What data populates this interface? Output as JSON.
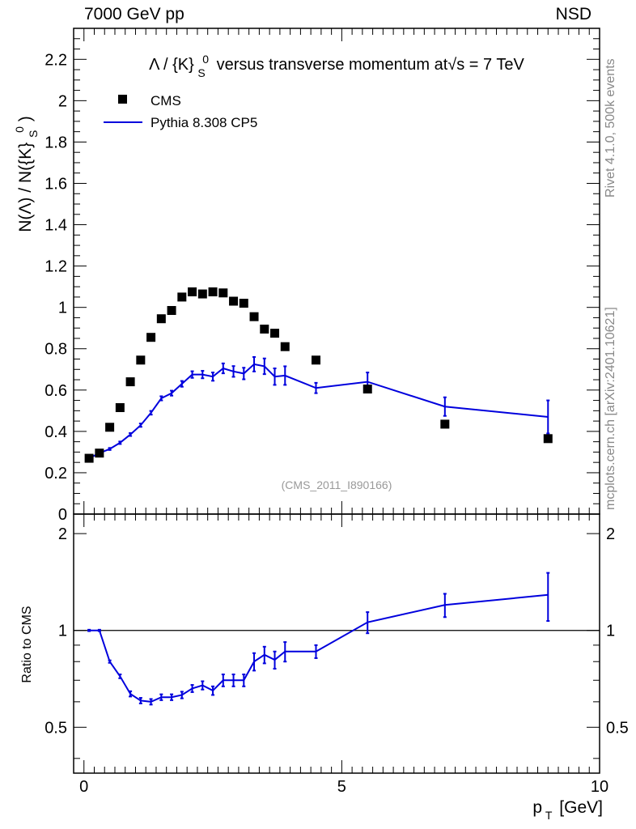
{
  "header": {
    "energy_label": "7000 GeV pp",
    "process_label": "NSD"
  },
  "side_labels": {
    "rivet": "Rivet 4.1.0,  500k events",
    "mcplots": "mcplots.cern.ch [arXiv:2401.10621]"
  },
  "chart_data": [
    {
      "type": "scatter",
      "panel": "main",
      "title": "Λ / {K}_S^0 versus transverse momentum at √s = 7 TeV",
      "ylabel": "N(Λ)  /  N({K}_S^0)",
      "xlim": [
        -0.2,
        10
      ],
      "ylim": [
        0,
        2.35
      ],
      "yticks": [
        "0",
        "0.2",
        "0.4",
        "0.6",
        "0.8",
        "1",
        "1.2",
        "1.4",
        "1.6",
        "1.8",
        "2",
        "2.2"
      ],
      "analysis_tag": "(CMS_2011_I890166)",
      "legend": {
        "position": "top-left",
        "entries": [
          "CMS",
          "Pythia 8.308 CP5"
        ]
      },
      "series": [
        {
          "name": "CMS",
          "style": "markers",
          "color": "#000000",
          "x": [
            0.1,
            0.3,
            0.5,
            0.7,
            0.9,
            1.1,
            1.3,
            1.5,
            1.7,
            1.9,
            2.1,
            2.3,
            2.5,
            2.7,
            2.9,
            3.1,
            3.3,
            3.5,
            3.7,
            3.9,
            4.5,
            5.5,
            7.0,
            9.0
          ],
          "y": [
            0.27,
            0.295,
            0.42,
            0.515,
            0.64,
            0.745,
            0.855,
            0.945,
            0.985,
            1.05,
            1.075,
            1.065,
            1.075,
            1.07,
            1.03,
            1.02,
            0.955,
            0.895,
            0.875,
            0.81,
            0.745,
            0.605,
            0.435,
            0.365
          ]
        },
        {
          "name": "Pythia 8.308 CP5",
          "style": "line",
          "color": "#0000dd",
          "x": [
            0.1,
            0.3,
            0.5,
            0.7,
            0.9,
            1.1,
            1.3,
            1.5,
            1.7,
            1.9,
            2.1,
            2.3,
            2.5,
            2.7,
            2.9,
            3.1,
            3.3,
            3.5,
            3.7,
            3.9,
            4.5,
            5.5,
            7.0,
            9.0
          ],
          "y": [
            0.27,
            0.295,
            0.315,
            0.345,
            0.385,
            0.43,
            0.49,
            0.56,
            0.585,
            0.63,
            0.675,
            0.675,
            0.665,
            0.705,
            0.69,
            0.68,
            0.725,
            0.715,
            0.665,
            0.67,
            0.61,
            0.64,
            0.52,
            0.47
          ],
          "err": [
            0.005,
            0.005,
            0.005,
            0.006,
            0.007,
            0.008,
            0.009,
            0.01,
            0.012,
            0.014,
            0.016,
            0.018,
            0.02,
            0.024,
            0.026,
            0.028,
            0.035,
            0.038,
            0.04,
            0.045,
            0.025,
            0.045,
            0.045,
            0.08
          ]
        }
      ]
    },
    {
      "type": "line",
      "panel": "ratio",
      "ylabel": "Ratio to CMS",
      "xlabel": "p_T [GeV]",
      "xlim": [
        -0.2,
        10
      ],
      "ylim": [
        0.36,
        2.3
      ],
      "ytick_labels": [
        "0.5",
        "1",
        "2"
      ],
      "xtick_labels": [
        "0",
        "5",
        "10"
      ],
      "reference": 1,
      "series": [
        {
          "name": "Pythia 8.308 CP5 / CMS",
          "color": "#0000dd",
          "x": [
            0.1,
            0.3,
            0.5,
            0.7,
            0.9,
            1.1,
            1.3,
            1.5,
            1.7,
            1.9,
            2.1,
            2.3,
            2.5,
            2.7,
            2.9,
            3.1,
            3.3,
            3.5,
            3.7,
            3.9,
            4.5,
            5.5,
            7.0,
            9.0
          ],
          "y": [
            1.0,
            1.0,
            0.8,
            0.72,
            0.635,
            0.605,
            0.6,
            0.62,
            0.62,
            0.63,
            0.66,
            0.675,
            0.65,
            0.7,
            0.7,
            0.7,
            0.8,
            0.84,
            0.81,
            0.86,
            0.86,
            1.06,
            1.2,
            1.29
          ],
          "err": [
            0.005,
            0.005,
            0.007,
            0.01,
            0.012,
            0.012,
            0.012,
            0.013,
            0.013,
            0.015,
            0.017,
            0.02,
            0.02,
            0.03,
            0.03,
            0.03,
            0.05,
            0.05,
            0.05,
            0.06,
            0.04,
            0.08,
            0.1,
            0.22
          ]
        }
      ]
    }
  ]
}
